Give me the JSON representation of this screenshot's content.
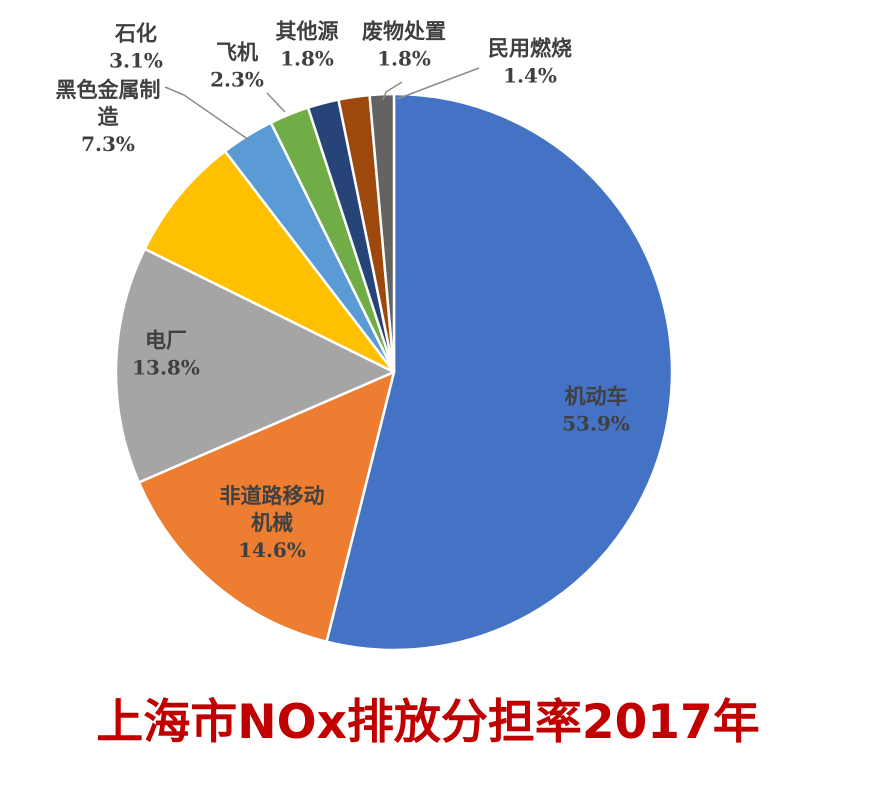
{
  "chart_data": {
    "type": "pie",
    "title": "上海市NOx排放分担率2017年",
    "slices": [
      {
        "label": "机动车",
        "value": 53.9,
        "text": "53.9%",
        "color": "#4472c4"
      },
      {
        "label": "非道路移动机械",
        "value": 14.6,
        "text": "14.6%",
        "color": "#ed7d31"
      },
      {
        "label": "电厂",
        "value": 13.8,
        "text": "13.8%",
        "color": "#a5a5a5"
      },
      {
        "label": "黑色金属制造",
        "value": 7.3,
        "text": "7.3%",
        "color": "#ffc000"
      },
      {
        "label": "石化",
        "value": 3.1,
        "text": "3.1%",
        "color": "#5b9bd5"
      },
      {
        "label": "飞机",
        "value": 2.3,
        "text": "2.3%",
        "color": "#70ad47"
      },
      {
        "label": "其他源",
        "value": 1.8,
        "text": "1.8%",
        "color": "#264478"
      },
      {
        "label": "废物处置",
        "value": 1.8,
        "text": "1.8%",
        "color": "#9e480e"
      },
      {
        "label": "民用燃烧",
        "value": 1.4,
        "text": "1.4%",
        "color": "#636363"
      }
    ]
  }
}
